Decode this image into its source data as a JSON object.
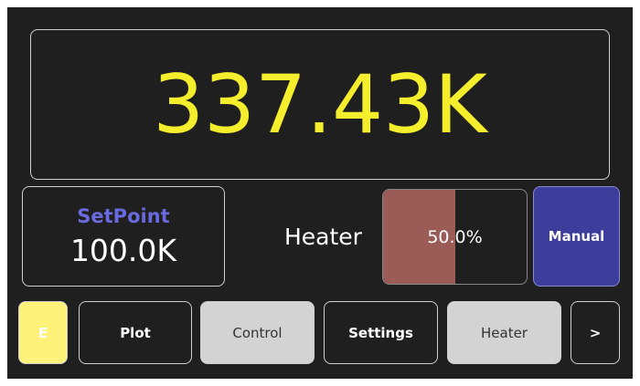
{
  "temperature": "337.43K",
  "setpoint": {
    "title": "SetPoint",
    "value": "100.0K"
  },
  "heater": {
    "label": "Heater",
    "output": 50,
    "output_label": "50.0%"
  },
  "mode_button": "Manual",
  "nav": [
    "E",
    "Plot",
    "Control",
    "Settings",
    "Heater",
    ">"
  ]
}
